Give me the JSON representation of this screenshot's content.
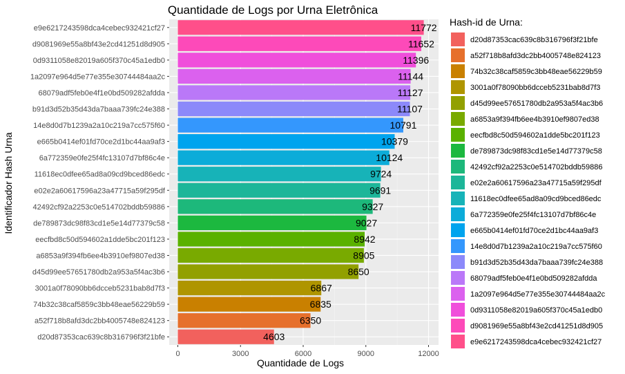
{
  "chart_data": {
    "type": "bar",
    "orientation": "horizontal",
    "title": "Quantidade de Logs por Urna Eletrônica",
    "xlabel": "Quantidade de Logs",
    "ylabel": "Identificador Hash Urna",
    "xlim": [
      0,
      12000
    ],
    "xticks": [
      0,
      3000,
      6000,
      9000,
      12000
    ],
    "xtick_labels": [
      "0",
      "3000",
      "6000",
      "9000",
      "12000"
    ],
    "grid": true,
    "legend_position": "right",
    "legend_title": "Hash-id de Urna:",
    "bars": [
      {
        "label": "e9e6217243598dca4cebec932421cf27",
        "value": 11772,
        "value_label": "11772",
        "color": "#FF4F8A"
      },
      {
        "label": "d9081969e55a8bf43e2cd41251d8d905",
        "value": 11652,
        "value_label": "11652",
        "color": "#FD4AB9"
      },
      {
        "label": "0d9311058e82019a605f370c45a1edb0",
        "value": 11396,
        "value_label": "11396",
        "color": "#F04EDB"
      },
      {
        "label": "1a2097e964d5e77e355e30744484aa2c",
        "value": 11144,
        "value_label": "11144",
        "color": "#DB61EE"
      },
      {
        "label": "68079adf5feb0e4f1e0bd509282afdda",
        "value": 11127,
        "value_label": "11127",
        "color": "#BA78F8"
      },
      {
        "label": "b91d3d52b35d43da7baaa739fc24e388",
        "value": 11107,
        "value_label": "11107",
        "color": "#8C89FA"
      },
      {
        "label": "14e8d0d7b1239a2a10c219a7cc575f60",
        "value": 10791,
        "value_label": "10791",
        "color": "#3497FD"
      },
      {
        "label": "e665b0414ef01fd70ce2d1bc44aa9af3",
        "value": 10379,
        "value_label": "10379",
        "color": "#00A4EE"
      },
      {
        "label": "6a772359e0fe25f4fc13107d7bf86c4e",
        "value": 10124,
        "value_label": "10124",
        "color": "#0CACD9"
      },
      {
        "label": "11618ec0dfee65ad8a09cd9bced86edc",
        "value": 9724,
        "value_label": "9724",
        "color": "#17B3B8"
      },
      {
        "label": "e02e2a60617596a23a47715a59f295df",
        "value": 9691,
        "value_label": "9691",
        "color": "#1DB699"
      },
      {
        "label": "42492cf92a2253c0e514702bddb59886",
        "value": 9327,
        "value_label": "9327",
        "color": "#1DB87B"
      },
      {
        "label": "de789873dc98f83cd1e5e14d77379c58",
        "value": 9027,
        "value_label": "9027",
        "color": "#1CB83F"
      },
      {
        "label": "eecfbd8c50d594602a1dde5bc201f123",
        "value": 8942,
        "value_label": "8942",
        "color": "#5AB100"
      },
      {
        "label": "a6853a9f394fb6ee4b3910ef9807ed38",
        "value": 8905,
        "value_label": "8905",
        "color": "#79AA00"
      },
      {
        "label": "d45d99ee57651780db2a953a5f4ac3b6",
        "value": 8650,
        "value_label": "8650",
        "color": "#92A000"
      },
      {
        "label": "3001a0f78090bb6dcceb5231bab8d7f3",
        "value": 6867,
        "value_label": "6867",
        "color": "#AF9500"
      },
      {
        "label": "74b32c38caf5859c3bb48eae56229b59",
        "value": 6835,
        "value_label": "6835",
        "color": "#C98000"
      },
      {
        "label": "a52f718b8afd3dc2bb4005748e824123",
        "value": 6350,
        "value_label": "6350",
        "color": "#E6702C"
      },
      {
        "label": "d20d87353cac639c8b316796f3f21bfe",
        "value": 4603,
        "value_label": "4603",
        "color": "#F2615D"
      }
    ],
    "legend": [
      {
        "label": "d20d87353cac639c8b316796f3f21bfe",
        "color": "#F2615D"
      },
      {
        "label": "a52f718b8afd3dc2bb4005748e824123",
        "color": "#E6702C"
      },
      {
        "label": "74b32c38caf5859c3bb48eae56229b59",
        "color": "#C98000"
      },
      {
        "label": "3001a0f78090bb6dcceb5231bab8d7f3",
        "color": "#AF9500"
      },
      {
        "label": "d45d99ee57651780db2a953a5f4ac3b6",
        "color": "#92A000"
      },
      {
        "label": "a6853a9f394fb6ee4b3910ef9807ed38",
        "color": "#79AA00"
      },
      {
        "label": "eecfbd8c50d594602a1dde5bc201f123",
        "color": "#5AB100"
      },
      {
        "label": "de789873dc98f83cd1e5e14d77379c58",
        "color": "#1CB83F"
      },
      {
        "label": "42492cf92a2253c0e514702bddb59886",
        "color": "#1DB87B"
      },
      {
        "label": "e02e2a60617596a23a47715a59f295df",
        "color": "#1DB699"
      },
      {
        "label": "11618ec0dfee65ad8a09cd9bced86edc",
        "color": "#17B3B8"
      },
      {
        "label": "6a772359e0fe25f4fc13107d7bf86c4e",
        "color": "#0CACD9"
      },
      {
        "label": "e665b0414ef01fd70ce2d1bc44aa9af3",
        "color": "#00A4EE"
      },
      {
        "label": "14e8d0d7b1239a2a10c219a7cc575f60",
        "color": "#3497FD"
      },
      {
        "label": "b91d3d52b35d43da7baaa739fc24e388",
        "color": "#8C89FA"
      },
      {
        "label": "68079adf5feb0e4f1e0bd509282afdda",
        "color": "#BA78F8"
      },
      {
        "label": "1a2097e964d5e77e355e30744484aa2c",
        "color": "#DB61EE"
      },
      {
        "label": "0d9311058e82019a605f370c45a1edb0",
        "color": "#F04EDB"
      },
      {
        "label": "d9081969e55a8bf43e2cd41251d8d905",
        "color": "#FD4AB9"
      },
      {
        "label": "e9e6217243598dca4cebec932421cf27",
        "color": "#FF4F8A"
      }
    ],
    "colors": {
      "panel_background": "#EBEBEB",
      "grid_major": "#FFFFFF",
      "grid_minor": "#F5F5F5",
      "tick_text": "#4D4D4D"
    }
  }
}
